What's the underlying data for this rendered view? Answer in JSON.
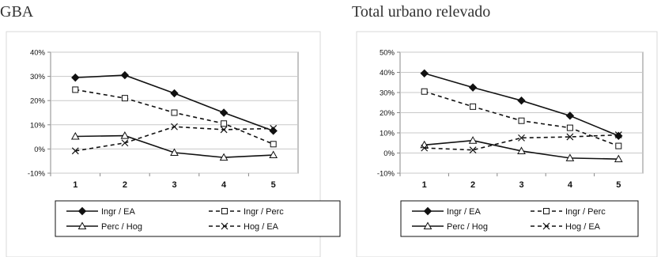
{
  "chart_data": [
    {
      "type": "line",
      "title": "GBA",
      "categories": [
        "1",
        "2",
        "3",
        "4",
        "5"
      ],
      "ylim": [
        -10,
        40
      ],
      "yticks": [
        "-10%",
        "0%",
        "10%",
        "20%",
        "30%",
        "40%"
      ],
      "grid": true,
      "legend_position": "bottom",
      "series": [
        {
          "name": "Ingr / EA",
          "style": "solid",
          "marker": "diamond",
          "values": [
            29.5,
            30.5,
            23,
            15,
            7.5
          ]
        },
        {
          "name": "Ingr / Perc",
          "style": "dashed",
          "marker": "square",
          "values": [
            24.5,
            21,
            15,
            10.5,
            2
          ]
        },
        {
          "name": "Perc / Hog",
          "style": "solid",
          "marker": "triangle",
          "values": [
            5.2,
            5.5,
            -1.5,
            -3.5,
            -2.5
          ]
        },
        {
          "name": "Hog / EA",
          "style": "dashed",
          "marker": "x",
          "values": [
            -0.8,
            2.5,
            9.2,
            8,
            8.5
          ]
        }
      ]
    },
    {
      "type": "line",
      "title": "Total urbano relevado",
      "categories": [
        "1",
        "2",
        "3",
        "4",
        "5"
      ],
      "ylim": [
        -10,
        50
      ],
      "yticks": [
        "-10%",
        "0%",
        "10%",
        "20%",
        "30%",
        "40%",
        "50%"
      ],
      "grid": true,
      "legend_position": "bottom",
      "series": [
        {
          "name": "Ingr / EA",
          "style": "solid",
          "marker": "diamond",
          "values": [
            39.5,
            32.5,
            26,
            18.5,
            8.5
          ]
        },
        {
          "name": "Ingr / Perc",
          "style": "dashed",
          "marker": "square",
          "values": [
            30.5,
            23,
            16,
            12.5,
            3.5
          ]
        },
        {
          "name": "Perc / Hog",
          "style": "solid",
          "marker": "triangle",
          "values": [
            4,
            6.2,
            1,
            -2.5,
            -3
          ]
        },
        {
          "name": "Hog / EA",
          "style": "dashed",
          "marker": "x",
          "values": [
            2.5,
            1.5,
            7.5,
            8,
            9
          ]
        }
      ]
    }
  ]
}
